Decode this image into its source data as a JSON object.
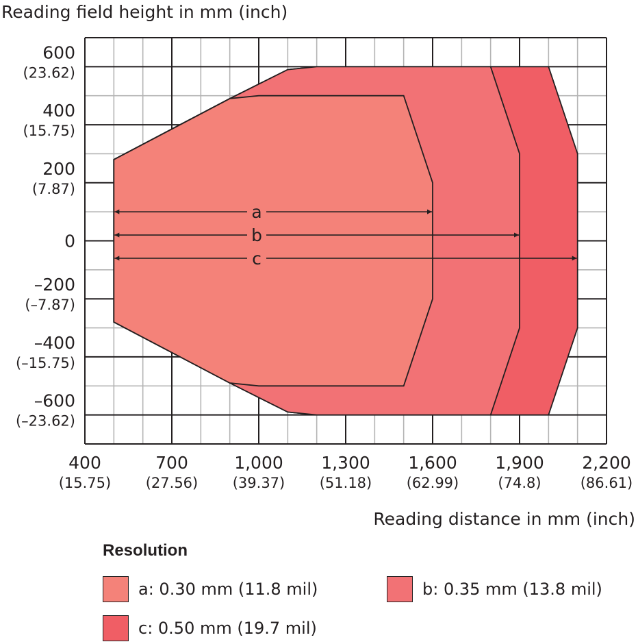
{
  "chart_data": {
    "type": "area",
    "ylabel": "Reading field height in mm (inch)",
    "xlabel": "Reading distance in mm (inch)",
    "xlim": [
      400,
      2200
    ],
    "ylim": [
      -700,
      700
    ],
    "grid": true,
    "x_ticks": [
      {
        "value": 400,
        "label": "400",
        "sub": "(15.75)"
      },
      {
        "value": 700,
        "label": "700",
        "sub": "(27.56)"
      },
      {
        "value": 1000,
        "label": "1,000",
        "sub": "(39.37)"
      },
      {
        "value": 1300,
        "label": "1,300",
        "sub": "(51.18)"
      },
      {
        "value": 1600,
        "label": "1,600",
        "sub": "(62.99)"
      },
      {
        "value": 1900,
        "label": "1,900",
        "sub": "(74.8)"
      },
      {
        "value": 2200,
        "label": "2,200",
        "sub": "(86.61)"
      }
    ],
    "y_ticks": [
      {
        "value": 600,
        "label": "600",
        "sub": "(23.62)"
      },
      {
        "value": 400,
        "label": "400",
        "sub": "(15.75)"
      },
      {
        "value": 200,
        "label": "200",
        "sub": "(7.87)"
      },
      {
        "value": 0,
        "label": "0",
        "sub": ""
      },
      {
        "value": -200,
        "label": "–200",
        "sub": "(–7.87)"
      },
      {
        "value": -400,
        "label": "–400",
        "sub": "(–15.75)"
      },
      {
        "value": -600,
        "label": "–600",
        "sub": "(–23.62)"
      }
    ],
    "legend_title": "Resolution",
    "legend_placement": "bottom",
    "series": [
      {
        "name": "c: 0.50 mm (19.7 mil)",
        "letter": "c",
        "color": "#f05e65",
        "points": [
          [
            500,
            280
          ],
          [
            900,
            490
          ],
          [
            1100,
            590
          ],
          [
            1200,
            600
          ],
          [
            2000,
            600
          ],
          [
            2100,
            300
          ],
          [
            2100,
            -300
          ],
          [
            2000,
            -600
          ],
          [
            1200,
            -600
          ],
          [
            1100,
            -590
          ],
          [
            900,
            -490
          ],
          [
            500,
            -280
          ]
        ],
        "arrow_to": 2100,
        "arrow_y": -60
      },
      {
        "name": "b: 0.35 mm (13.8 mil)",
        "letter": "b",
        "color": "#f27275",
        "points": [
          [
            500,
            280
          ],
          [
            900,
            490
          ],
          [
            1100,
            590
          ],
          [
            1200,
            600
          ],
          [
            1800,
            600
          ],
          [
            1900,
            300
          ],
          [
            1900,
            -300
          ],
          [
            1800,
            -600
          ],
          [
            1200,
            -600
          ],
          [
            1100,
            -590
          ],
          [
            900,
            -490
          ],
          [
            500,
            -280
          ]
        ],
        "arrow_to": 1900,
        "arrow_y": 20
      },
      {
        "name": "a: 0.30 mm (11.8 mil)",
        "letter": "a",
        "color": "#f48279",
        "points": [
          [
            500,
            280
          ],
          [
            900,
            490
          ],
          [
            1000,
            500
          ],
          [
            1500,
            500
          ],
          [
            1600,
            200
          ],
          [
            1600,
            -200
          ],
          [
            1500,
            -500
          ],
          [
            1000,
            -500
          ],
          [
            900,
            -490
          ],
          [
            500,
            -280
          ]
        ],
        "arrow_to": 1600,
        "arrow_y": 100
      }
    ],
    "arrow_from": 500
  }
}
